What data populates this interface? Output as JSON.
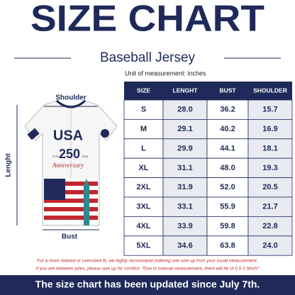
{
  "header": {
    "title": "SIZE CHART",
    "subtitle": "Baseball Jersey",
    "unit_note": "Unit of measurement: inches"
  },
  "diagram": {
    "shoulder": "Shoulder",
    "length": "Lenght",
    "bust": "Bust",
    "jersey_text": {
      "country": "USA",
      "number": "250",
      "script": "Anniversary",
      "year_start": "1776",
      "year_end": "2026"
    }
  },
  "table": {
    "columns": [
      "SIZE",
      "LENGHT",
      "BUST",
      "SHOULDER"
    ],
    "rows": [
      [
        "S",
        "28.0",
        "36.2",
        "15.7"
      ],
      [
        "M",
        "29.1",
        "40.2",
        "16.9"
      ],
      [
        "L",
        "29.9",
        "44.1",
        "18.1"
      ],
      [
        "XL",
        "31.1",
        "48.0",
        "19.3"
      ],
      [
        "2XL",
        "31.9",
        "52.0",
        "20.5"
      ],
      [
        "3XL",
        "33.1",
        "55.9",
        "21.7"
      ],
      [
        "4XL",
        "33.9",
        "59.8",
        "22.8"
      ],
      [
        "5XL",
        "34.6",
        "63.8",
        "24.0"
      ]
    ]
  },
  "footer": {
    "note_1": "For a more relaxed or oversized fit, we highly recommend ordering one size up from your usual measurement.",
    "note_2": "If you are between sizes, please size up for comfort. *Due to manual measurement, there will be of 0.5-1.5inch*",
    "banner": "The size chart has been updated since July 7th."
  }
}
